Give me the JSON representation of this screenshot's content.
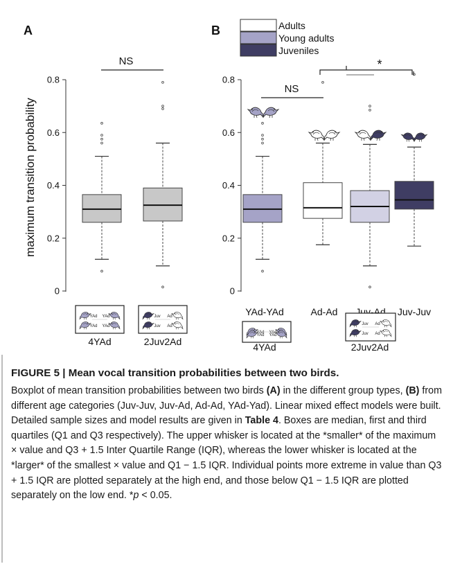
{
  "chart_data": [
    {
      "panel": "A",
      "type": "box",
      "ylabel": "maximum transition probability",
      "ylim": [
        0,
        0.85
      ],
      "yticks": [
        "0",
        "0.2",
        "0.4",
        "0.6",
        "0.8"
      ],
      "categories": [
        "4YAd",
        "2Juv2Ad"
      ],
      "boxes": [
        {
          "label": "4YAd",
          "q1": 0.26,
          "median": 0.31,
          "q3": 0.365,
          "whisker_low": 0.12,
          "whisker_high": 0.51,
          "outliers": [
            0.075,
            0.56,
            0.575,
            0.59,
            0.635
          ],
          "color": "#c8c8c8"
        },
        {
          "label": "2Juv2Ad",
          "q1": 0.265,
          "median": 0.325,
          "q3": 0.39,
          "whisker_low": 0.095,
          "whisker_high": 0.56,
          "outliers": [
            0.015,
            0.69,
            0.7,
            0.79
          ],
          "color": "#c8c8c8"
        }
      ],
      "annotation": "NS"
    },
    {
      "panel": "B",
      "type": "box",
      "ylim": [
        0,
        0.85
      ],
      "yticks": [
        "0",
        "0.2",
        "0.4",
        "0.6",
        "0.8"
      ],
      "categories": [
        "YAd-YAd",
        "Ad-Ad",
        "Juv-Ad",
        "Juv-Juv"
      ],
      "legend": [
        {
          "name": "Adults",
          "color": "#ffffff"
        },
        {
          "name": "Young adults",
          "color": "#a5a3c7"
        },
        {
          "name": "Juveniles",
          "color": "#3f3d63"
        }
      ],
      "boxes": [
        {
          "label": "YAd-YAd",
          "q1": 0.26,
          "median": 0.31,
          "q3": 0.365,
          "whisker_low": 0.12,
          "whisker_high": 0.51,
          "outliers": [
            0.075,
            0.56,
            0.575,
            0.59,
            0.635
          ],
          "color": "#a5a3c7"
        },
        {
          "label": "Ad-Ad",
          "q1": 0.275,
          "median": 0.315,
          "q3": 0.41,
          "whisker_low": 0.175,
          "whisker_high": 0.56,
          "outliers": [
            0.79
          ],
          "color": "#ffffff"
        },
        {
          "label": "Juv-Ad",
          "q1": 0.26,
          "median": 0.32,
          "q3": 0.38,
          "whisker_low": 0.095,
          "whisker_high": 0.555,
          "outliers": [
            0.015,
            0.685,
            0.7
          ],
          "color": "#d2d1e4"
        },
        {
          "label": "Juv-Juv",
          "q1": 0.31,
          "median": 0.345,
          "q3": 0.415,
          "whisker_low": 0.17,
          "whisker_high": 0.545,
          "outliers": [
            0.82
          ],
          "color": "#3f3d63"
        }
      ],
      "annotations": [
        "NS",
        "*"
      ],
      "group_labels": [
        "4YAd",
        "2Juv2Ad"
      ]
    }
  ],
  "panel_a_letter": "A",
  "panel_b_letter": "B",
  "diagram_text": {
    "yad": "YAd",
    "juv": "Juv",
    "ad": "Ad"
  },
  "caption": {
    "title": "FIGURE 5 | Mean vocal transition probabilities between two birds.",
    "t1": "Boxplot of mean transition probabilities between two birds ",
    "a": "(A)",
    "t2": " in the different group types, ",
    "b": "(B)",
    "t3": " from different age categories (Juv-Juv, Juv-Ad, Ad-Ad, YAd-Yad). Linear mixed effect models were built. Detailed sample sizes and model results are given in ",
    "table": "Table 4",
    "t4": ". Boxes are median, first and third quartiles (Q1 and Q3 respectively). The upper whisker is located at the *smaller* of the maximum × value and Q3 + 1.5 Inter Quartile Range (IQR), whereas the lower whisker is located at the *larger* of the smallest × value and Q1 − 1.5 IQR. Individual points more extreme in value than Q3 + 1.5 IQR are plotted separately at the high end, and those below Q1 − 1.5 IQR are plotted separately on the low end. *",
    "p": "p",
    "t5": " < 0.05."
  }
}
